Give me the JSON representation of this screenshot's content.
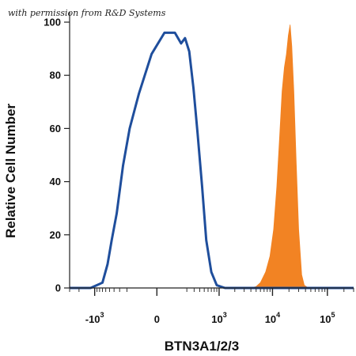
{
  "watermark": "with permission from R&D Systems",
  "chart_data": {
    "type": "area",
    "xlabel": "BTN3A1/2/3",
    "ylabel": "Relative Cell Number",
    "x_scale": "biexponential",
    "xlim": [
      -3000,
      300000
    ],
    "ylim": [
      0,
      100
    ],
    "y_ticks": [
      0,
      20,
      40,
      60,
      80,
      100
    ],
    "x_ticks": [
      {
        "value": -1000,
        "base": "-10",
        "exp": "3"
      },
      {
        "value": 0,
        "base": "0",
        "exp": ""
      },
      {
        "value": 1000,
        "base": "10",
        "exp": "3"
      },
      {
        "value": 10000,
        "base": "10",
        "exp": "4"
      },
      {
        "value": 100000,
        "base": "10",
        "exp": "5"
      }
    ],
    "series": [
      {
        "style": "outline",
        "color": "#1f4e9c",
        "points": [
          [
            -3000,
            0
          ],
          [
            -1200,
            0
          ],
          [
            -700,
            2
          ],
          [
            -550,
            9
          ],
          [
            -450,
            18
          ],
          [
            -350,
            28
          ],
          [
            -250,
            46
          ],
          [
            -170,
            60
          ],
          [
            -90,
            73
          ],
          [
            -20,
            88
          ],
          [
            30,
            96
          ],
          [
            90,
            96
          ],
          [
            140,
            92
          ],
          [
            180,
            94
          ],
          [
            230,
            89
          ],
          [
            290,
            75
          ],
          [
            360,
            58
          ],
          [
            450,
            38
          ],
          [
            550,
            18
          ],
          [
            700,
            6
          ],
          [
            900,
            1
          ],
          [
            1300,
            0
          ],
          [
            300000,
            0
          ]
        ]
      },
      {
        "style": "filled",
        "color": "#f28323",
        "points": [
          [
            -3000,
            0
          ],
          [
            4000,
            0
          ],
          [
            5000,
            0.5
          ],
          [
            6000,
            2
          ],
          [
            7500,
            6
          ],
          [
            9000,
            12
          ],
          [
            10500,
            22
          ],
          [
            12000,
            38
          ],
          [
            13500,
            57
          ],
          [
            15000,
            74
          ],
          [
            16500,
            83
          ],
          [
            18000,
            88
          ],
          [
            19500,
            95
          ],
          [
            21000,
            99
          ],
          [
            22500,
            91
          ],
          [
            24500,
            74
          ],
          [
            27000,
            48
          ],
          [
            30000,
            22
          ],
          [
            34000,
            5
          ],
          [
            38000,
            1
          ],
          [
            45000,
            0
          ],
          [
            300000,
            0
          ]
        ]
      }
    ]
  }
}
